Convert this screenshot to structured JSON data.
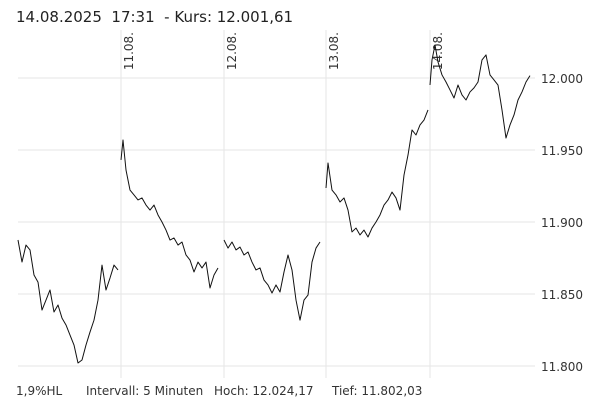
{
  "chart_data": {
    "type": "line",
    "title": "14.08.2025  17:31  - Kurs: 12.001,61",
    "stats": [
      "1,9%HL",
      "Intervall: 5 Minuten",
      "Hoch: 12.024,17",
      "Tief: 11.802,03"
    ],
    "color": "#111111",
    "grid": true,
    "xlim": [
      0,
      517
    ],
    "xticks": [
      {
        "value": 103,
        "label": "11.08."
      },
      {
        "value": 206,
        "label": "12.08."
      },
      {
        "value": 308,
        "label": "13.08."
      },
      {
        "value": 412,
        "label": "14.08."
      }
    ],
    "ylim": [
      11791.7,
      12033.3
    ],
    "yticks": [
      {
        "value": 11800,
        "label": "11.800"
      },
      {
        "value": 11850,
        "label": "11.850"
      },
      {
        "value": 11900,
        "label": "11.900"
      },
      {
        "value": 11950,
        "label": "11.950"
      },
      {
        "value": 12000,
        "label": "12.000"
      }
    ],
    "x": [
      0,
      4,
      8,
      12,
      16,
      20,
      24,
      28,
      32,
      36,
      40,
      44,
      48,
      52,
      56,
      60,
      64,
      68,
      72,
      76,
      80,
      84,
      88,
      92,
      96,
      100,
      101.5,
      103,
      105,
      108,
      112,
      116,
      120,
      124,
      128,
      132,
      136,
      140,
      144,
      148,
      152,
      156,
      160,
      164,
      168,
      172,
      176,
      180,
      184,
      188,
      192,
      196,
      200,
      204,
      206,
      210,
      214,
      218,
      222,
      226,
      230,
      234,
      238,
      242,
      246,
      250,
      254,
      258,
      262,
      266,
      270,
      274,
      278,
      282,
      286,
      290,
      294,
      298,
      302,
      305,
      308,
      310,
      314,
      318,
      322,
      326,
      330,
      334,
      338,
      342,
      346,
      350,
      354,
      358,
      362,
      366,
      370,
      374,
      378,
      382,
      386,
      390,
      394,
      398,
      402,
      406,
      410,
      411,
      412,
      414,
      417,
      420,
      424,
      428,
      432,
      436,
      440,
      444,
      448,
      452,
      456,
      460,
      464,
      468,
      472,
      476,
      480,
      484,
      488,
      492,
      496,
      500,
      504,
      508,
      512
    ],
    "values": [
      11887.5,
      11872.2,
      11884.0,
      11880.6,
      11863.2,
      11858.3,
      11838.9,
      11845.8,
      11852.8,
      11837.5,
      11842.4,
      11833.3,
      11828.5,
      11821.5,
      11814.6,
      11802.1,
      11804.2,
      11814.6,
      11823.6,
      11831.9,
      11845.8,
      11870.1,
      11852.8,
      11861.1,
      11870.1,
      11866.7,
      null,
      11943.1,
      11956.9,
      11936.1,
      11922.2,
      11918.8,
      11915.3,
      11916.7,
      11911.8,
      11908.3,
      11911.8,
      11904.9,
      11900.0,
      11894.4,
      11887.5,
      11888.9,
      11884.0,
      11886.1,
      11877.1,
      11873.6,
      11865.3,
      11872.2,
      11868.1,
      11872.2,
      11854.2,
      11863.2,
      11868.1,
      null,
      11887.5,
      11881.9,
      11886.1,
      11880.6,
      11882.6,
      11877.1,
      11879.2,
      11872.2,
      11866.7,
      11868.1,
      11859.7,
      11856.3,
      11850.7,
      11856.3,
      11851.4,
      11865.3,
      11877.1,
      11866.7,
      11845.8,
      11831.9,
      11845.8,
      11849.3,
      11872.2,
      11881.9,
      11886.1,
      null,
      11923.6,
      11941.0,
      11922.2,
      11918.8,
      11913.9,
      11916.7,
      11908.3,
      11893.1,
      11895.8,
      11891.0,
      11894.4,
      11889.6,
      11895.8,
      11900.0,
      11904.9,
      11911.8,
      11915.3,
      11920.8,
      11916.7,
      11908.3,
      11932.6,
      11946.5,
      11963.9,
      11960.4,
      11967.4,
      11970.8,
      11977.8,
      null,
      11995.1,
      12012.5,
      12022.9,
      12011.1,
      12002.1,
      11997.2,
      11991.7,
      11986.1,
      11995.1,
      11988.2,
      11984.7,
      11990.3,
      11993.1,
      11997.2,
      12012.5,
      12016.0,
      12002.1,
      11998.6,
      11995.1,
      11977.8,
      11958.3,
      11967.4,
      11974.3,
      11984.7,
      11990.3,
      11997.2,
      12001.6
    ]
  }
}
